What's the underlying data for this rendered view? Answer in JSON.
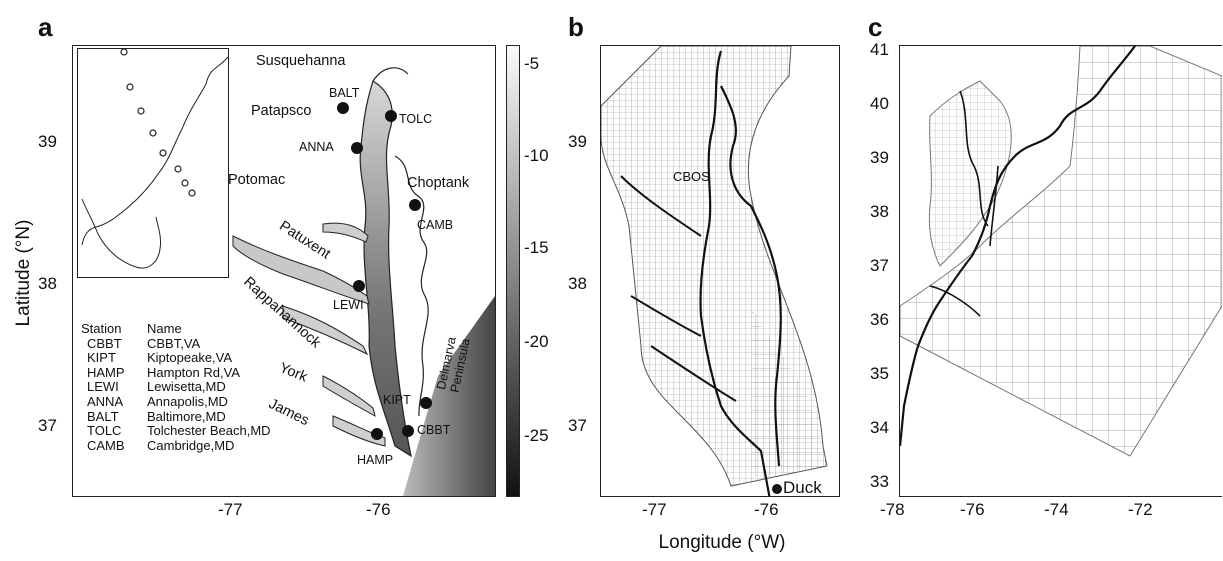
{
  "panels": {
    "a": {
      "label": "a",
      "yticks": [
        "39",
        "38",
        "37"
      ],
      "xticks": [
        "-77",
        "-76"
      ]
    },
    "b": {
      "label": "b",
      "yticks": [
        "39",
        "38",
        "37"
      ],
      "xticks": [
        "-77",
        "-76"
      ],
      "site_label": "CBOS",
      "end_label": "Duck"
    },
    "c": {
      "label": "c",
      "yticks": [
        "41",
        "40",
        "39",
        "38",
        "37",
        "36",
        "35",
        "34",
        "33"
      ],
      "xticks": [
        "-78",
        "-76",
        "-74",
        "-72"
      ]
    }
  },
  "axes": {
    "ylabel": "Latitude (°N)",
    "xlabel": "Longitude (°W)"
  },
  "colorbar": {
    "ticks": [
      "-5",
      "-10",
      "-15",
      "-20",
      "-25"
    ],
    "range": [
      -28,
      -2
    ],
    "colormap": "gray"
  },
  "places": [
    "Susquehanna",
    "Patapsco",
    "Choptank",
    "Potomac",
    "Patuxent",
    "Rappahannock",
    "York",
    "James",
    "Delmarva Peninsula"
  ],
  "stations": [
    "BALT",
    "TOLC",
    "ANNA",
    "CAMB",
    "LEWI",
    "KIPT",
    "CBBT",
    "HAMP"
  ],
  "legend": {
    "header": {
      "station": "Station",
      "name": "Name"
    },
    "rows": [
      {
        "code": "CBBT",
        "name": "CBBT,VA"
      },
      {
        "code": "KIPT",
        "name": "Kiptopeake,VA"
      },
      {
        "code": "HAMP",
        "name": "Hampton Rd,VA"
      },
      {
        "code": "LEWI",
        "name": "Lewisetta,MD"
      },
      {
        "code": "ANNA",
        "name": "Annapolis,MD"
      },
      {
        "code": "BALT",
        "name": "Baltimore,MD"
      },
      {
        "code": "TOLC",
        "name": "Tolchester Beach,MD"
      },
      {
        "code": "CAMB",
        "name": "Cambridge,MD"
      }
    ]
  }
}
